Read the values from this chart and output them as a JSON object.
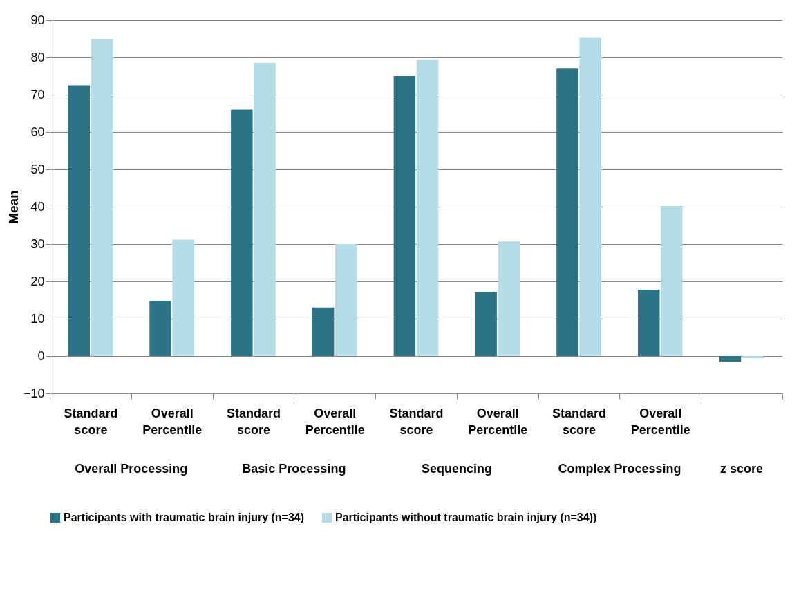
{
  "chart_data": {
    "type": "bar",
    "ylabel": "Mean",
    "categories": [
      "Standard score",
      "Overall Percentile",
      "Standard score",
      "Overall Percentile",
      "Standard score",
      "Overall Percentile",
      "Standard score",
      "Overall Percentile",
      null
    ],
    "annotations": [
      "Overall Processing",
      "Basic Processing",
      "Sequencing",
      "Complex Processing",
      "z score"
    ],
    "series": [
      {
        "name": "Participants  with traumatic brain injury (n=34)",
        "color": "#2b7488",
        "values": [
          72.5,
          14.8,
          66,
          13,
          75,
          17.2,
          77,
          17.8,
          -1.5
        ]
      },
      {
        "name": "Participants without traumatic brain injury (n=34))",
        "color": "#b4dce6",
        "values": [
          85,
          31.2,
          78.5,
          30,
          79.3,
          30.7,
          85.3,
          40.2,
          -0.6
        ]
      }
    ],
    "ylim": [
      -10,
      90
    ],
    "yticks": [
      -10,
      0,
      10,
      20,
      30,
      40,
      50,
      60,
      70,
      80,
      90
    ],
    "grid": "y",
    "legend": "bottom"
  }
}
